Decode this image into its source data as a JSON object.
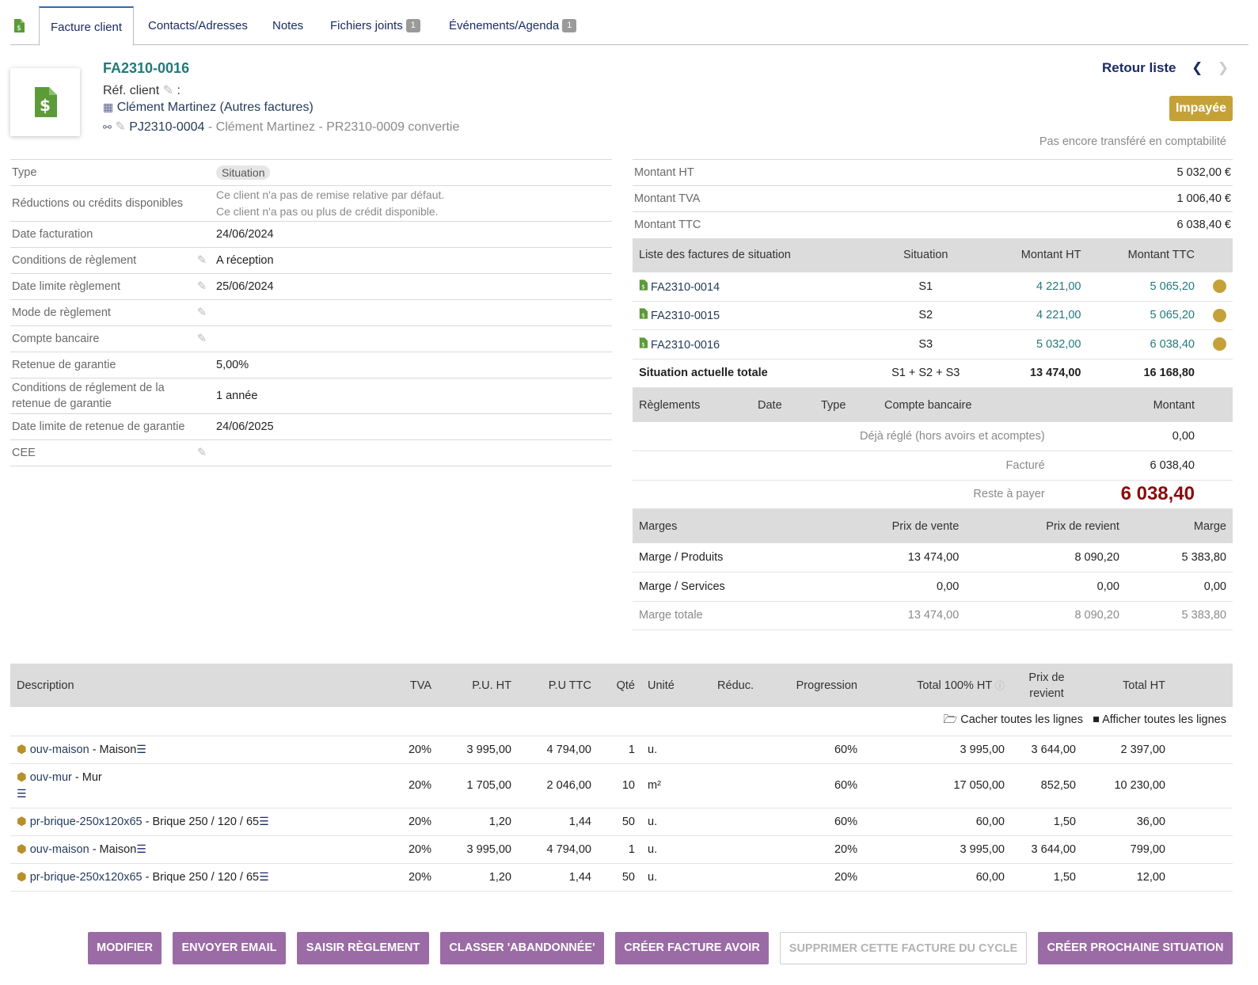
{
  "tabs": [
    {
      "label": "Facture client"
    },
    {
      "label": "Contacts/Adresses"
    },
    {
      "label": "Notes"
    },
    {
      "label": "Fichiers joints",
      "badge": "1"
    },
    {
      "label": "Événements/Agenda",
      "badge": "1"
    }
  ],
  "header": {
    "ref": "FA2310-0016",
    "ref_client_label": "Réf. client",
    "ref_client_sep": ":",
    "thirdparty": "Clément Martinez",
    "thirdparty_other": "(Autres factures)",
    "project_ref": "PJ2310-0004",
    "project_desc": "- Clément Martinez - PR2310-0009 convertie",
    "back_label": "Retour liste",
    "status": "Impayée",
    "accounting_note": "Pas encore transféré en comptabilité"
  },
  "details": {
    "type_label": "Type",
    "type_value": "Situation",
    "reductions_label": "Réductions ou crédits disponibles",
    "reductions_line1": "Ce client n'a pas de remise relative par défaut.",
    "reductions_line2": "Ce client n'a pas ou plus de crédit disponible.",
    "date_label": "Date facturation",
    "date_value": "24/06/2024",
    "cond_label": "Conditions de règlement",
    "cond_value": "A réception",
    "limit_label": "Date limite règlement",
    "limit_value": "25/06/2024",
    "mode_label": "Mode de règlement",
    "bank_label": "Compte bancaire",
    "retenue_label": "Retenue de garantie",
    "retenue_value": "5,00%",
    "cond_retenue_label": "Conditions de réglement de la retenue de garantie",
    "cond_retenue_value": "1 année",
    "limit_retenue_label": "Date limite de retenue de garantie",
    "limit_retenue_value": "24/06/2025",
    "cee_label": "CEE"
  },
  "amounts": {
    "ht_label": "Montant HT",
    "ht_value": "5 032,00 €",
    "tva_label": "Montant TVA",
    "tva_value": "1 006,40 €",
    "ttc_label": "Montant TTC",
    "ttc_value": "6 038,40 €"
  },
  "situations": {
    "headers": {
      "list": "Liste des factures de situation",
      "situation": "Situation",
      "ht": "Montant HT",
      "ttc": "Montant TTC"
    },
    "rows": [
      {
        "ref": "FA2310-0014",
        "sit": "S1",
        "ht": "4 221,00",
        "ttc": "5 065,20"
      },
      {
        "ref": "FA2310-0015",
        "sit": "S2",
        "ht": "4 221,00",
        "ttc": "5 065,20"
      },
      {
        "ref": "FA2310-0016",
        "sit": "S3",
        "ht": "5 032,00",
        "ttc": "6 038,40"
      }
    ],
    "total_label": "Situation actuelle totale",
    "total_sit": "S1 + S2 + S3",
    "total_ht": "13 474,00",
    "total_ttc": "16 168,80"
  },
  "payments": {
    "headers": {
      "reglements": "Règlements",
      "date": "Date",
      "type": "Type",
      "bank": "Compte bancaire",
      "amount": "Montant"
    },
    "already_label": "Déjà réglé (hors avoirs et acomptes)",
    "already_value": "0,00",
    "billed_label": "Facturé",
    "billed_value": "6 038,40",
    "remain_label": "Reste à payer",
    "remain_value": "6 038,40"
  },
  "margins": {
    "headers": {
      "marges": "Marges",
      "sale": "Prix de vente",
      "cost": "Prix de revient",
      "margin": "Marge"
    },
    "rows": [
      {
        "label": "Marge / Produits",
        "sale": "13 474,00",
        "cost": "8 090,20",
        "margin": "5 383,80"
      },
      {
        "label": "Marge / Services",
        "sale": "0,00",
        "cost": "0,00",
        "margin": "0,00"
      }
    ],
    "total": {
      "label": "Marge totale",
      "sale": "13 474,00",
      "cost": "8 090,20",
      "margin": "5 383,80"
    }
  },
  "lines": {
    "headers": {
      "desc": "Description",
      "tva": "TVA",
      "pu_ht": "P.U. HT",
      "pu_ttc": "P.U TTC",
      "qty": "Qté",
      "unit": "Unité",
      "reduc": "Réduc.",
      "prog": "Progression",
      "total100": "Total 100% HT",
      "cost_line1": "Prix de",
      "cost_line2": "revient",
      "total_ht": "Total HT"
    },
    "hide_all": "Cacher toutes les lignes",
    "show_all": "Afficher toutes les lignes",
    "rows": [
      {
        "ref": "ouv-maison",
        "label": "- Maison",
        "tva": "20%",
        "pu_ht": "3 995,00",
        "pu_ttc": "4 794,00",
        "qty": "1",
        "unit": "u.",
        "prog": "60%",
        "total100": "3 995,00",
        "cost": "3 644,00",
        "total_ht": "2 397,00"
      },
      {
        "ref": "ouv-mur",
        "label": "- Mur",
        "tva": "20%",
        "pu_ht": "1 705,00",
        "pu_ttc": "2 046,00",
        "qty": "10",
        "unit": "m²",
        "prog": "60%",
        "total100": "17 050,00",
        "cost": "852,50",
        "total_ht": "10 230,00"
      },
      {
        "ref": "pr-brique-250x120x65",
        "label": "- Brique 250 / 120 / 65",
        "tva": "20%",
        "pu_ht": "1,20",
        "pu_ttc": "1,44",
        "qty": "50",
        "unit": "u.",
        "prog": "60%",
        "total100": "60,00",
        "cost": "1,50",
        "total_ht": "36,00"
      },
      {
        "ref": "ouv-maison",
        "label": "- Maison",
        "tva": "20%",
        "pu_ht": "3 995,00",
        "pu_ttc": "4 794,00",
        "qty": "1",
        "unit": "u.",
        "prog": "20%",
        "total100": "3 995,00",
        "cost": "3 644,00",
        "total_ht": "799,00"
      },
      {
        "ref": "pr-brique-250x120x65",
        "label": "- Brique 250 / 120 / 65",
        "tva": "20%",
        "pu_ht": "1,20",
        "pu_ttc": "1,44",
        "qty": "50",
        "unit": "u.",
        "prog": "20%",
        "total100": "60,00",
        "cost": "1,50",
        "total_ht": "12,00"
      }
    ]
  },
  "buttons": {
    "modify": "MODIFIER",
    "email": "ENVOYER EMAIL",
    "payment": "SAISIR RÈGLEMENT",
    "abandon": "CLASSER 'ABANDONNÉE'",
    "credit": "CRÉER FACTURE AVOIR",
    "delete_cycle": "SUPPRIMER CETTE FACTURE DU CYCLE",
    "next": "CRÉER PROCHAINE SITUATION"
  },
  "colors": {
    "accent": "#22797a",
    "status": "#c5a239",
    "button": "#9b6ba6",
    "due": "#8a0c0c"
  }
}
